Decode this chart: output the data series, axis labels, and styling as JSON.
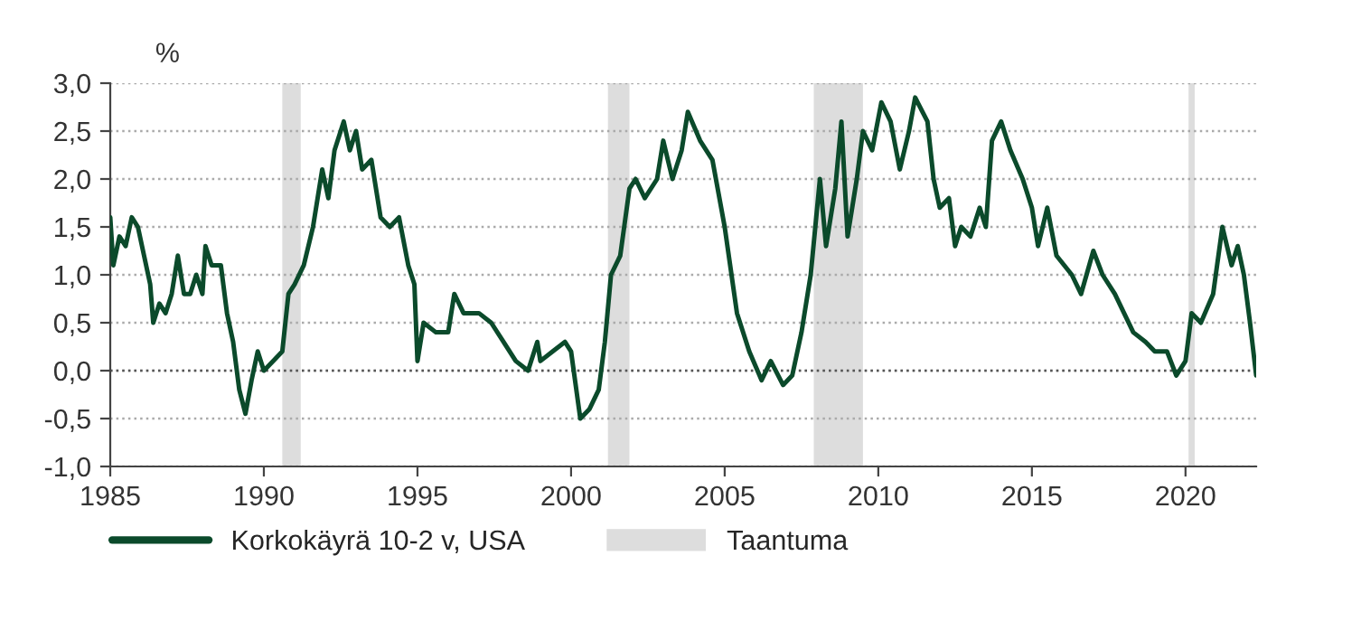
{
  "chart_data": {
    "type": "line",
    "ylabel": "%",
    "legend": "bottom",
    "grid": "y",
    "line_style": "solid",
    "xlim": [
      1985,
      2022.3
    ],
    "xticks": [
      1985,
      1990,
      1995,
      2000,
      2005,
      2010,
      2015,
      2020
    ],
    "ylim": [
      -1.0,
      3.0
    ],
    "yticks": [
      {
        "value": -1.0,
        "label": "-1,0"
      },
      {
        "value": -0.5,
        "label": "-0,5"
      },
      {
        "value": 0.0,
        "label": "0,0"
      },
      {
        "value": 0.5,
        "label": "0,5"
      },
      {
        "value": 1.0,
        "label": "1,0"
      },
      {
        "value": 1.5,
        "label": "1,5"
      },
      {
        "value": 2.0,
        "label": "2,0"
      },
      {
        "value": 2.5,
        "label": "2,5"
      },
      {
        "value": 3.0,
        "label": "3,0"
      }
    ],
    "ref_lines": [
      {
        "axis": "y",
        "value": 0,
        "color": "#555555",
        "line_style": "dotted"
      }
    ],
    "bands": [
      {
        "axis": "x",
        "from": 1990.6,
        "to": 1991.2,
        "label": "Taantuma",
        "color": "#dddddd"
      },
      {
        "axis": "x",
        "from": 2001.2,
        "to": 2001.9,
        "color": "#dddddd"
      },
      {
        "axis": "x",
        "from": 2007.9,
        "to": 2009.5,
        "color": "#dddddd"
      },
      {
        "axis": "x",
        "from": 2020.1,
        "to": 2020.3,
        "color": "#dddddd"
      }
    ],
    "series": [
      {
        "name": "Korkokäyrä 10-2 v, USA",
        "color": "#0b4a2b",
        "x": [
          1985.0,
          1985.1,
          1985.3,
          1985.5,
          1985.7,
          1985.9,
          1986.1,
          1986.3,
          1986.4,
          1986.6,
          1986.8,
          1987.0,
          1987.2,
          1987.4,
          1987.6,
          1987.8,
          1988.0,
          1988.1,
          1988.3,
          1988.6,
          1988.8,
          1989.0,
          1989.2,
          1989.4,
          1989.6,
          1989.8,
          1990.0,
          1990.3,
          1990.6,
          1990.8,
          1991.0,
          1991.3,
          1991.6,
          1991.9,
          1992.1,
          1992.3,
          1992.6,
          1992.8,
          1993.0,
          1993.2,
          1993.5,
          1993.8,
          1994.1,
          1994.4,
          1994.7,
          1994.9,
          1995.0,
          1995.2,
          1995.6,
          1996.0,
          1996.2,
          1996.5,
          1997.0,
          1997.4,
          1997.8,
          1998.2,
          1998.6,
          1998.9,
          1999.0,
          1999.4,
          1999.8,
          2000.0,
          2000.3,
          2000.6,
          2000.9,
          2001.1,
          2001.3,
          2001.6,
          2001.9,
          2002.1,
          2002.4,
          2002.8,
          2003.0,
          2003.3,
          2003.6,
          2003.8,
          2004.2,
          2004.6,
          2005.0,
          2005.4,
          2005.8,
          2006.2,
          2006.5,
          2006.9,
          2007.2,
          2007.5,
          2007.8,
          2008.1,
          2008.3,
          2008.6,
          2008.8,
          2009.0,
          2009.3,
          2009.5,
          2009.8,
          2010.1,
          2010.4,
          2010.7,
          2011.0,
          2011.2,
          2011.6,
          2011.8,
          2012.0,
          2012.3,
          2012.5,
          2012.7,
          2013.0,
          2013.3,
          2013.5,
          2013.7,
          2014.0,
          2014.3,
          2014.7,
          2015.0,
          2015.2,
          2015.5,
          2015.8,
          2016.3,
          2016.6,
          2017.0,
          2017.3,
          2017.7,
          2018.0,
          2018.3,
          2018.7,
          2019.0,
          2019.4,
          2019.7,
          2020.0,
          2020.2,
          2020.5,
          2020.9,
          2021.2,
          2021.5,
          2021.7,
          2021.9,
          2022.1,
          2022.3
        ],
        "values": [
          1.6,
          1.1,
          1.4,
          1.3,
          1.6,
          1.5,
          1.2,
          0.9,
          0.5,
          0.7,
          0.6,
          0.8,
          1.2,
          0.8,
          0.8,
          1.0,
          0.8,
          1.3,
          1.1,
          1.1,
          0.6,
          0.3,
          -0.2,
          -0.45,
          -0.1,
          0.2,
          0.0,
          0.1,
          0.2,
          0.8,
          0.9,
          1.1,
          1.5,
          2.1,
          1.8,
          2.3,
          2.6,
          2.3,
          2.5,
          2.1,
          2.2,
          1.6,
          1.5,
          1.6,
          1.1,
          0.9,
          0.1,
          0.5,
          0.4,
          0.4,
          0.8,
          0.6,
          0.6,
          0.5,
          0.3,
          0.1,
          0.0,
          0.3,
          0.1,
          0.2,
          0.3,
          0.2,
          -0.5,
          -0.4,
          -0.2,
          0.3,
          1.0,
          1.2,
          1.9,
          2.0,
          1.8,
          2.0,
          2.4,
          2.0,
          2.3,
          2.7,
          2.4,
          2.2,
          1.5,
          0.6,
          0.2,
          -0.1,
          0.1,
          -0.15,
          -0.05,
          0.4,
          1.0,
          2.0,
          1.3,
          1.9,
          2.6,
          1.4,
          2.0,
          2.5,
          2.3,
          2.8,
          2.6,
          2.1,
          2.5,
          2.85,
          2.6,
          2.0,
          1.7,
          1.8,
          1.3,
          1.5,
          1.4,
          1.7,
          1.5,
          2.4,
          2.6,
          2.3,
          2.0,
          1.7,
          1.3,
          1.7,
          1.2,
          1.0,
          0.8,
          1.25,
          1.0,
          0.8,
          0.6,
          0.4,
          0.3,
          0.2,
          0.2,
          -0.05,
          0.1,
          0.6,
          0.5,
          0.8,
          1.5,
          1.1,
          1.3,
          1.0,
          0.5,
          -0.05
        ]
      }
    ]
  }
}
